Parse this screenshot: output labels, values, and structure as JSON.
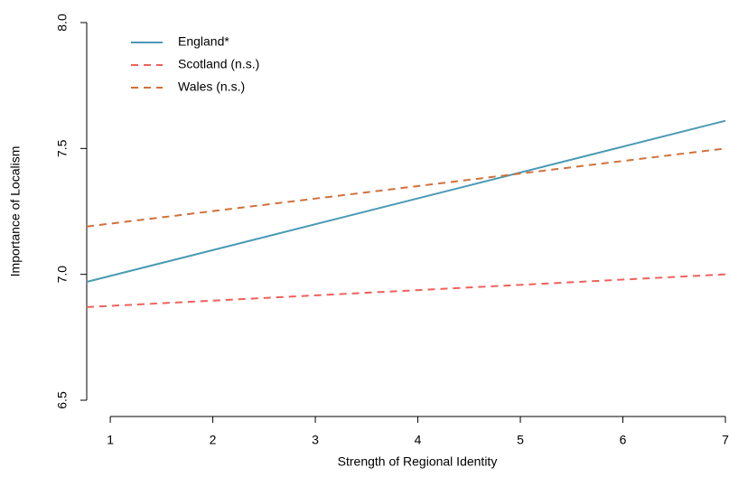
{
  "chart_data": {
    "type": "line",
    "x_label": "Strength of Regional Identity",
    "y_label": "Importance of Localism",
    "x": [
      0.77,
      7
    ],
    "series": [
      {
        "name": "England*",
        "color": "#4a9ab5",
        "dashed": false,
        "values": [
          6.97,
          7.61
        ]
      },
      {
        "name": "Scotland (n.s.)",
        "color": "#f0605d",
        "dashed": true,
        "values": [
          6.87,
          7.0
        ]
      },
      {
        "name": "Wales (n.s.)",
        "color": "#d2703a",
        "dashed": true,
        "values": [
          7.19,
          7.5
        ]
      }
    ],
    "xlim": [
      0.77,
      7
    ],
    "xticks": [
      1,
      2,
      3,
      4,
      5,
      6,
      7
    ],
    "ylim": [
      6.5,
      8.0
    ],
    "yticks": [
      {
        "value": 6.5,
        "label": "6.5"
      },
      {
        "value": 7.0,
        "label": "7.0"
      },
      {
        "value": 7.5,
        "label": "7.5"
      },
      {
        "value": 8.0,
        "label": "8.0"
      }
    ],
    "legend": "top-left"
  }
}
